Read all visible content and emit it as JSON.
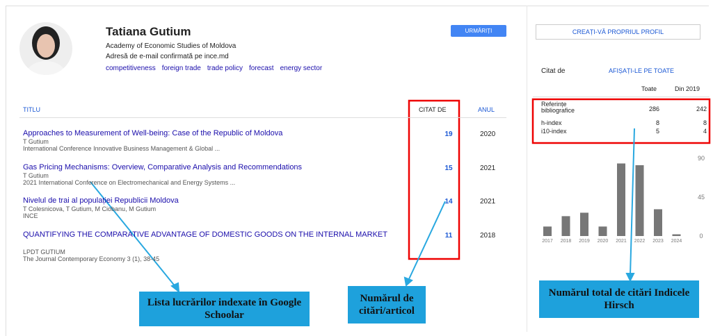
{
  "profile": {
    "name": "Tatiana Gutium",
    "affiliation": "Academy of Economic Studies of Moldova",
    "email": "Adresă de e-mail confirmată pe ince.md",
    "interests": [
      "competitiveness",
      "foreign trade",
      "trade policy",
      "forecast",
      "energy sector"
    ],
    "follow_button": "URMĂRIȚI"
  },
  "table": {
    "headers": [
      "TITLU",
      "CITAT DE",
      "ANUL"
    ],
    "articles": [
      {
        "title": "Approaches to Measurement of Well-being: Case of the Republic of Moldova",
        "authors": "T Gutium",
        "venue": "International Conference Innovative Business Management & Global ...",
        "cited_by": 19,
        "year": 2020
      },
      {
        "title": "Gas Pricing Mechanisms: Overview, Comparative Analysis and Recommendations",
        "authors": "T Gutium",
        "venue": "2021 International Conference on Electromechanical and Energy Systems ...",
        "cited_by": 15,
        "year": 2021
      },
      {
        "title": "Nivelul de trai al populației Republicii Moldova",
        "authors": "T Colesnicova, T Gutium, M Ciobanu, M Gutium",
        "venue": "INCE",
        "cited_by": 14,
        "year": 2021
      },
      {
        "title": "QUANTIFYING THE COMPARATIVE ADVANTAGE OF DOMESTIC GOODS ON THE INTERNAL MARKET",
        "authors": "LPDT GUTIUM",
        "venue": "The Journal Contemporary Economy 3 (1), 38-45",
        "cited_by": 11,
        "year": 2018
      }
    ]
  },
  "sidebar": {
    "create_profile": "CREAȚI-VĂ PROPRIUL PROFIL",
    "cited_by": "Citat de",
    "show_all": "AFIȘAȚI-LE PE TOATE",
    "columns": [
      "Toate",
      "Din 2019"
    ],
    "stats": [
      {
        "label": "Referințe bibliografice",
        "all": 286,
        "since": 242
      },
      {
        "label": "h-index",
        "all": 8,
        "since": 8
      },
      {
        "label": "i10-index",
        "all": 5,
        "since": 4
      }
    ]
  },
  "chart_data": {
    "type": "bar",
    "categories": [
      "2017",
      "2018",
      "2019",
      "2020",
      "2021",
      "2022",
      "2023",
      "2024"
    ],
    "values": [
      11,
      23,
      27,
      11,
      84,
      82,
      31,
      2
    ],
    "color": "#777777",
    "ylim": [
      0,
      90
    ],
    "yticks": [
      0,
      45,
      90
    ]
  },
  "annotations": [
    "Lista lucrărilor indexate în Google Schoolar",
    "Numărul de citări/articol",
    "Numărul total de citări Indicele Hirsch"
  ]
}
